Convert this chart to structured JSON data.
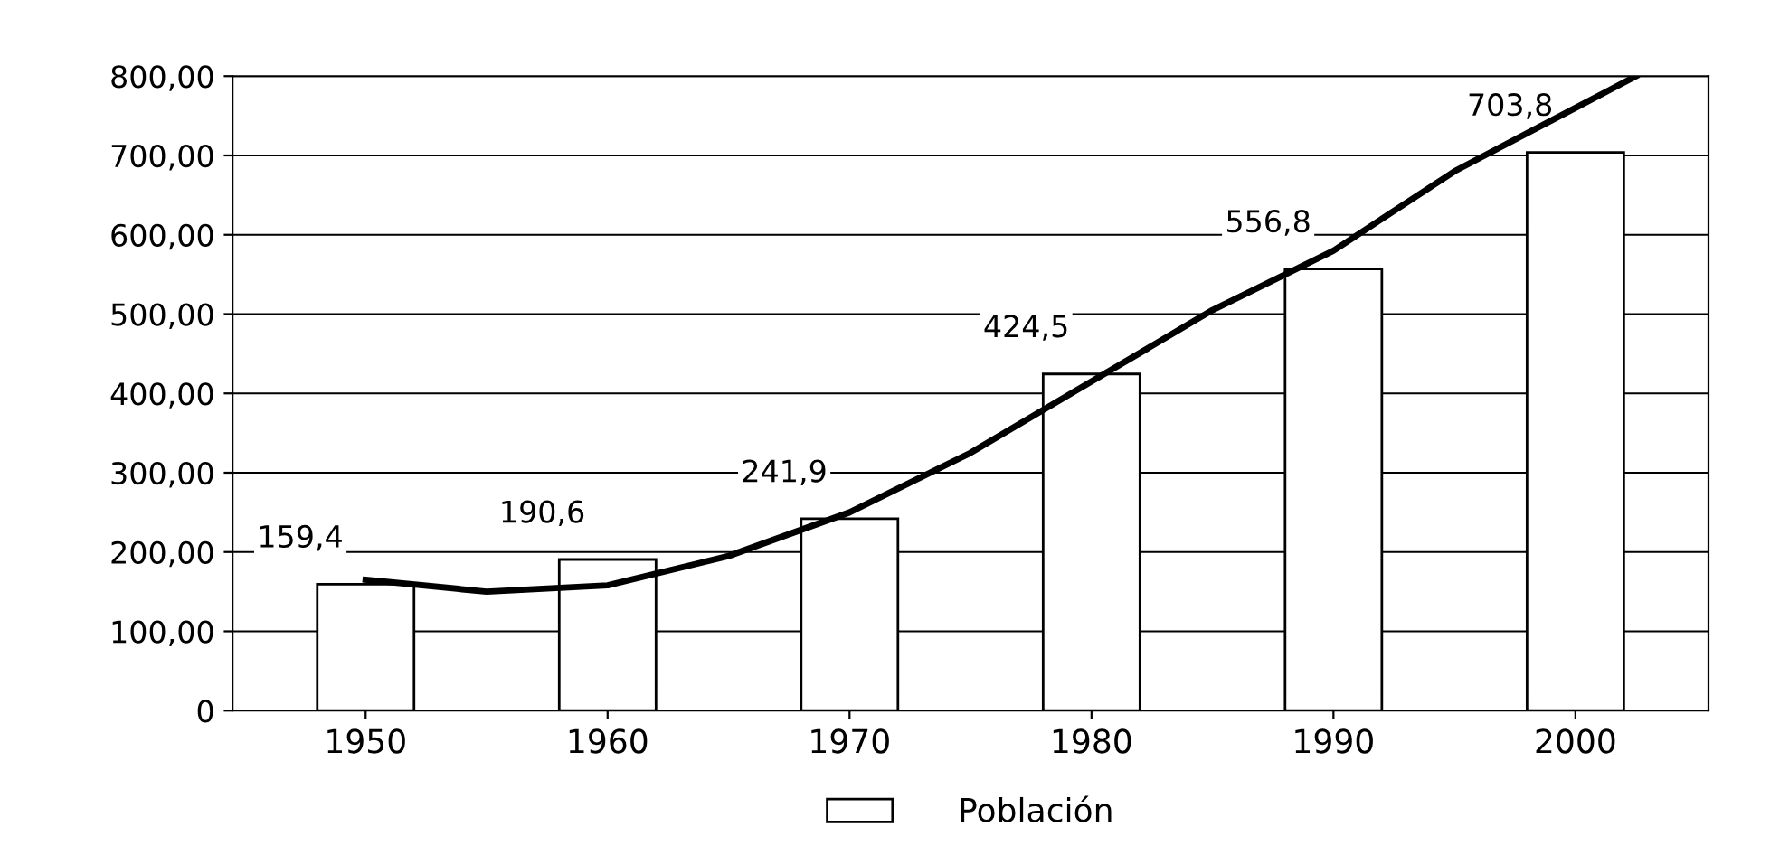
{
  "chart_data": {
    "type": "bar",
    "x": [
      1950,
      1960,
      1970,
      1980,
      1990,
      2000
    ],
    "series": [
      {
        "name": "Población",
        "color": "#ffffff",
        "values": [
          159.4,
          190.6,
          241.9,
          424.5,
          556.8,
          703.8
        ],
        "value_labels": [
          "159,4",
          "190,6",
          "241,9",
          "424,5",
          "556,8",
          "703,8"
        ]
      },
      {
        "type": "line",
        "color": "#000000",
        "x": [
          1950,
          1955,
          1960,
          1965,
          1970,
          1975,
          1980,
          1985,
          1990,
          1995,
          2000,
          2002.5
        ],
        "values": [
          165,
          150,
          158,
          195,
          250,
          325,
          415,
          505,
          580,
          680,
          760,
          800
        ]
      }
    ],
    "xlim": [
      1944.5,
      2005.5
    ],
    "xticks": [
      1950,
      1960,
      1970,
      1980,
      1990,
      2000
    ],
    "ylim": [
      0,
      800
    ],
    "yticks": [
      {
        "value": 0,
        "label": "0"
      },
      {
        "value": 100,
        "label": "100,00"
      },
      {
        "value": 200,
        "label": "200,00"
      },
      {
        "value": 300,
        "label": "300,00"
      },
      {
        "value": 400,
        "label": "400,00"
      },
      {
        "value": 500,
        "label": "500,00"
      },
      {
        "value": 600,
        "label": "600,00"
      },
      {
        "value": 700,
        "label": "700,00"
      },
      {
        "value": 800,
        "label": "800,00"
      }
    ],
    "grid": "y",
    "legend": "bottom"
  }
}
